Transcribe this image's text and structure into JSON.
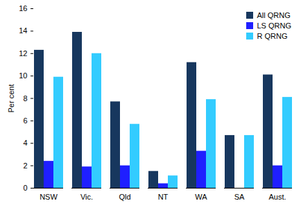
{
  "chart_data": {
    "type": "bar",
    "categories": [
      "NSW",
      "Vic.",
      "Qld",
      "NT",
      "WA",
      "SA",
      "Aust."
    ],
    "series": [
      {
        "name": "All QRNG",
        "color": "#17375e",
        "values": [
          12.3,
          13.9,
          7.7,
          1.5,
          11.2,
          4.7,
          10.1
        ]
      },
      {
        "name": "LS QRNG",
        "color": "#1f1fff",
        "values": [
          2.4,
          1.9,
          2.0,
          0.4,
          3.3,
          0,
          2.0
        ]
      },
      {
        "name": "R QRNG",
        "color": "#33ccff",
        "values": [
          9.9,
          12.0,
          5.7,
          1.1,
          7.9,
          4.7,
          8.1
        ]
      }
    ],
    "y_label": "Per cent",
    "ylim": [
      0,
      16
    ],
    "yticks": [
      0,
      2,
      4,
      6,
      8,
      10,
      12,
      14,
      16
    ],
    "grid": false,
    "legend": "top-right"
  }
}
